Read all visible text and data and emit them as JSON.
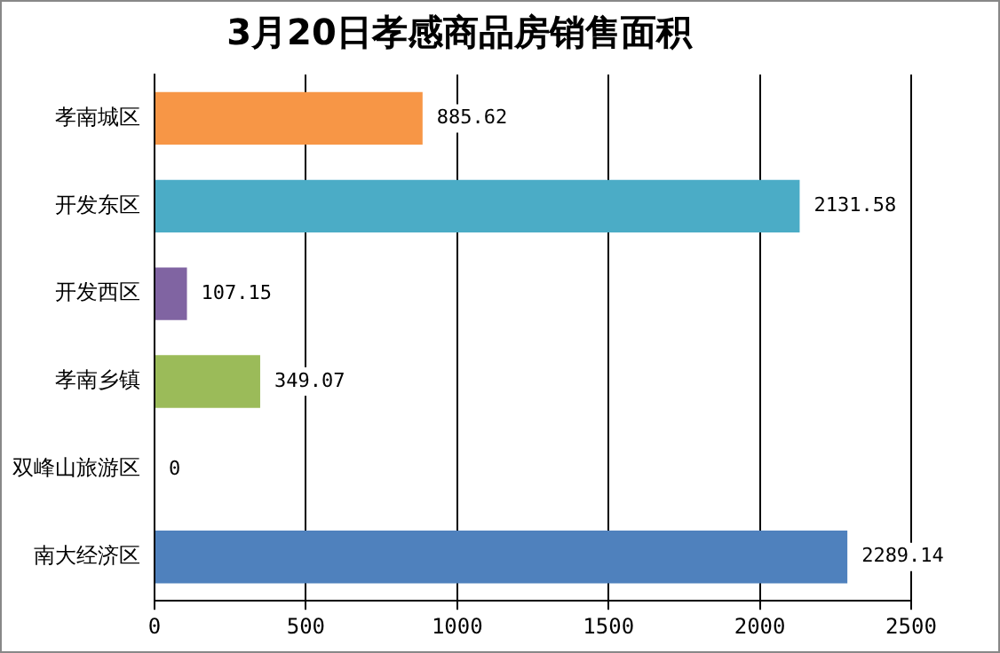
{
  "chart_data": {
    "type": "bar",
    "orientation": "horizontal",
    "title": "3月20日孝感商品房销售面积",
    "categories": [
      "孝南城区",
      "开发东区",
      "开发西区",
      "孝南乡镇",
      "双峰山旅游区",
      "南大经济区"
    ],
    "values": [
      885.62,
      2131.58,
      107.15,
      349.07,
      0,
      2289.14
    ],
    "colors": [
      "#f79646",
      "#4bacc6",
      "#8064a2",
      "#9bbb59",
      "#4f81bd",
      "#4f81bd"
    ],
    "xlim": [
      0,
      2500
    ],
    "xticks": [
      0,
      500,
      1000,
      1500,
      2000,
      2500
    ],
    "grid": "x",
    "data_labels": true,
    "legend": false
  }
}
